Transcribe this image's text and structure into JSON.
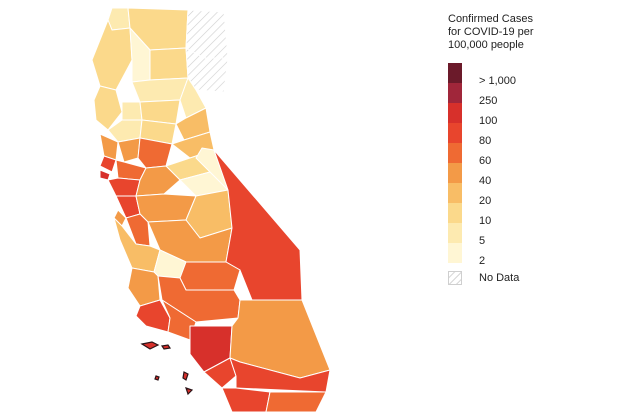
{
  "legend": {
    "title_lines": [
      "Confirmed Cases",
      "for COVID-19 per",
      "100,000 people"
    ],
    "bins": [
      {
        "label": "> 1,000",
        "color": "#6b1a2a"
      },
      {
        "label": "250",
        "color": "#a0263a"
      },
      {
        "label": "100",
        "color": "#d7302b"
      },
      {
        "label": "80",
        "color": "#e8452d"
      },
      {
        "label": "60",
        "color": "#ef6a33"
      },
      {
        "label": "40",
        "color": "#f39a47"
      },
      {
        "label": "20",
        "color": "#f8bd66"
      },
      {
        "label": "10",
        "color": "#fbd98b"
      },
      {
        "label": "5",
        "color": "#fdeab0"
      },
      {
        "label": "2",
        "color": "#fff6d4"
      }
    ],
    "no_data_label": "No Data"
  }
}
